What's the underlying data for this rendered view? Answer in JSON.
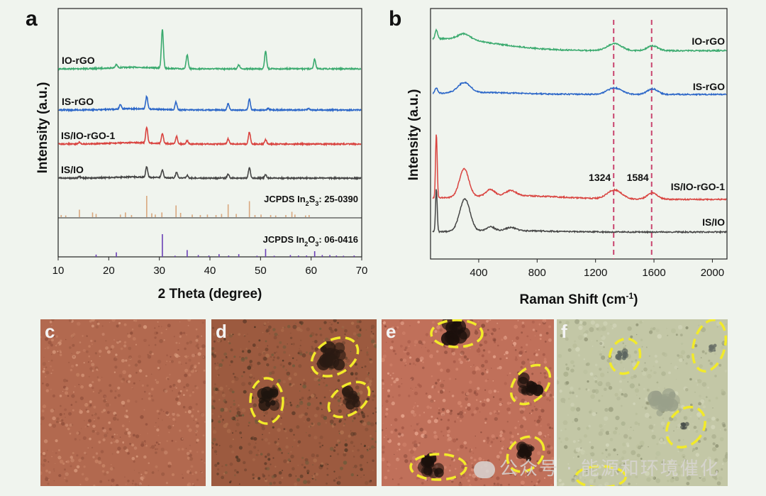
{
  "chart_data": [
    {
      "panel": "a",
      "type": "line",
      "xlabel": "2 Theta (degree)",
      "ylabel": "Intensity (a.u.)",
      "xlim": [
        10,
        70
      ],
      "xticks": [
        10,
        20,
        30,
        40,
        50,
        60,
        70
      ],
      "series": [
        {
          "name": "IO-rGO",
          "color": "#3aaa6e",
          "peaks": [
            [
              21.5,
              0.08
            ],
            [
              30.6,
              1.0
            ],
            [
              35.5,
              0.35
            ],
            [
              45.7,
              0.1
            ],
            [
              51.0,
              0.45
            ],
            [
              60.7,
              0.25
            ]
          ]
        },
        {
          "name": "IS-rGO",
          "color": "#2b66c8",
          "peaks": [
            [
              22.3,
              0.15
            ],
            [
              27.5,
              0.4
            ],
            [
              33.3,
              0.25
            ],
            [
              43.6,
              0.2
            ],
            [
              47.8,
              0.35
            ],
            [
              51.5,
              0.05
            ],
            [
              59.5,
              0.05
            ]
          ]
        },
        {
          "name": "IS/IO-rGO-1",
          "color": "#d9433f",
          "peaks": [
            [
              14.2,
              0.05
            ],
            [
              27.5,
              0.45
            ],
            [
              30.6,
              0.3
            ],
            [
              33.4,
              0.22
            ],
            [
              35.5,
              0.1
            ],
            [
              43.6,
              0.15
            ],
            [
              47.8,
              0.35
            ],
            [
              51.0,
              0.12
            ]
          ]
        },
        {
          "name": "IS/IO",
          "color": "#454545",
          "peaks": [
            [
              14.2,
              0.05
            ],
            [
              27.5,
              0.4
            ],
            [
              30.6,
              0.3
            ],
            [
              33.4,
              0.22
            ],
            [
              35.5,
              0.1
            ],
            [
              43.6,
              0.15
            ],
            [
              47.8,
              0.38
            ],
            [
              51.0,
              0.12
            ]
          ]
        }
      ],
      "references": [
        {
          "name": "JCPDS In2S3: 25-0390",
          "label_main": "JCPDS In",
          "sub1": "2",
          "mid": "S",
          "sub2": "3",
          "tail": ": 25-0390",
          "color": "#d9a77e",
          "lines": [
            [
              10.6,
              0.1
            ],
            [
              11.5,
              0.08
            ],
            [
              14.2,
              0.35
            ],
            [
              16.8,
              0.22
            ],
            [
              17.5,
              0.15
            ],
            [
              22.3,
              0.12
            ],
            [
              23.3,
              0.22
            ],
            [
              24.5,
              0.1
            ],
            [
              27.5,
              1.0
            ],
            [
              28.5,
              0.18
            ],
            [
              29.2,
              0.12
            ],
            [
              30.5,
              0.22
            ],
            [
              33.3,
              0.55
            ],
            [
              34.2,
              0.2
            ],
            [
              36.5,
              0.12
            ],
            [
              38.1,
              0.1
            ],
            [
              39.5,
              0.12
            ],
            [
              41.2,
              0.1
            ],
            [
              42.3,
              0.15
            ],
            [
              43.6,
              0.6
            ],
            [
              45.2,
              0.15
            ],
            [
              47.8,
              0.75
            ],
            [
              48.9,
              0.1
            ],
            [
              50.1,
              0.12
            ],
            [
              52.0,
              0.1
            ],
            [
              53.0,
              0.08
            ],
            [
              55.0,
              0.1
            ],
            [
              56.2,
              0.25
            ],
            [
              56.8,
              0.12
            ],
            [
              58.9,
              0.08
            ],
            [
              59.6,
              0.1
            ]
          ]
        },
        {
          "name": "JCPDS In2O3: 06-0416",
          "label_main": "JCPDS In",
          "sub1": "2",
          "mid": "O",
          "sub2": "3",
          "tail": ": 06-0416",
          "color": "#6a3fb5",
          "lines": [
            [
              17.5,
              0.1
            ],
            [
              21.5,
              0.2
            ],
            [
              30.6,
              1.0
            ],
            [
              33.1,
              0.05
            ],
            [
              35.5,
              0.3
            ],
            [
              37.7,
              0.08
            ],
            [
              39.8,
              0.06
            ],
            [
              41.8,
              0.12
            ],
            [
              43.7,
              0.06
            ],
            [
              45.7,
              0.12
            ],
            [
              49.3,
              0.05
            ],
            [
              51.0,
              0.35
            ],
            [
              52.7,
              0.05
            ],
            [
              55.9,
              0.08
            ],
            [
              57.5,
              0.06
            ],
            [
              59.1,
              0.06
            ],
            [
              60.7,
              0.25
            ],
            [
              62.2,
              0.08
            ],
            [
              63.7,
              0.08
            ],
            [
              65.0,
              0.06
            ],
            [
              66.4,
              0.05
            ],
            [
              68.5,
              0.06
            ]
          ]
        }
      ]
    },
    {
      "panel": "b",
      "type": "line",
      "xlabel_main": "Raman Shift (cm",
      "xlabel_sup": "-1",
      "xlabel_tail": ")",
      "ylabel": "Intensity (a.u.)",
      "xlim": [
        70,
        2100
      ],
      "xticks": [
        400,
        800,
        1200,
        1600,
        2000
      ],
      "dashed_lines": [
        1324,
        1584
      ],
      "annotations": [
        "1324",
        "1584"
      ],
      "series": [
        {
          "name": "IO-rGO",
          "color": "#3aaa6e",
          "peaks": [
            [
              110,
              0.45,
              12
            ],
            [
              300,
              0.3,
              60
            ],
            [
              1330,
              0.35,
              70
            ],
            [
              1590,
              0.25,
              50
            ]
          ]
        },
        {
          "name": "IS-rGO",
          "color": "#2b66c8",
          "peaks": [
            [
              110,
              0.3,
              12
            ],
            [
              300,
              0.55,
              60
            ],
            [
              1330,
              0.35,
              70
            ],
            [
              1590,
              0.3,
              50
            ]
          ]
        },
        {
          "name": "IS/IO-rGO-1",
          "color": "#d9433f",
          "peaks": [
            [
              110,
              2.5,
              8
            ],
            [
              300,
              1.1,
              45
            ],
            [
              480,
              0.25,
              40
            ],
            [
              620,
              0.2,
              50
            ],
            [
              1330,
              0.35,
              70
            ],
            [
              1590,
              0.25,
              50
            ]
          ]
        },
        {
          "name": "IS/IO",
          "color": "#454545",
          "peaks": [
            [
              110,
              1.6,
              8
            ],
            [
              305,
              1.2,
              50
            ],
            [
              480,
              0.15,
              40
            ],
            [
              620,
              0.12,
              50
            ]
          ]
        }
      ]
    }
  ],
  "photos": [
    {
      "letter": "c"
    },
    {
      "letter": "d"
    },
    {
      "letter": "e"
    },
    {
      "letter": "f"
    }
  ],
  "watermark": "公众号 · 能源和环境催化"
}
